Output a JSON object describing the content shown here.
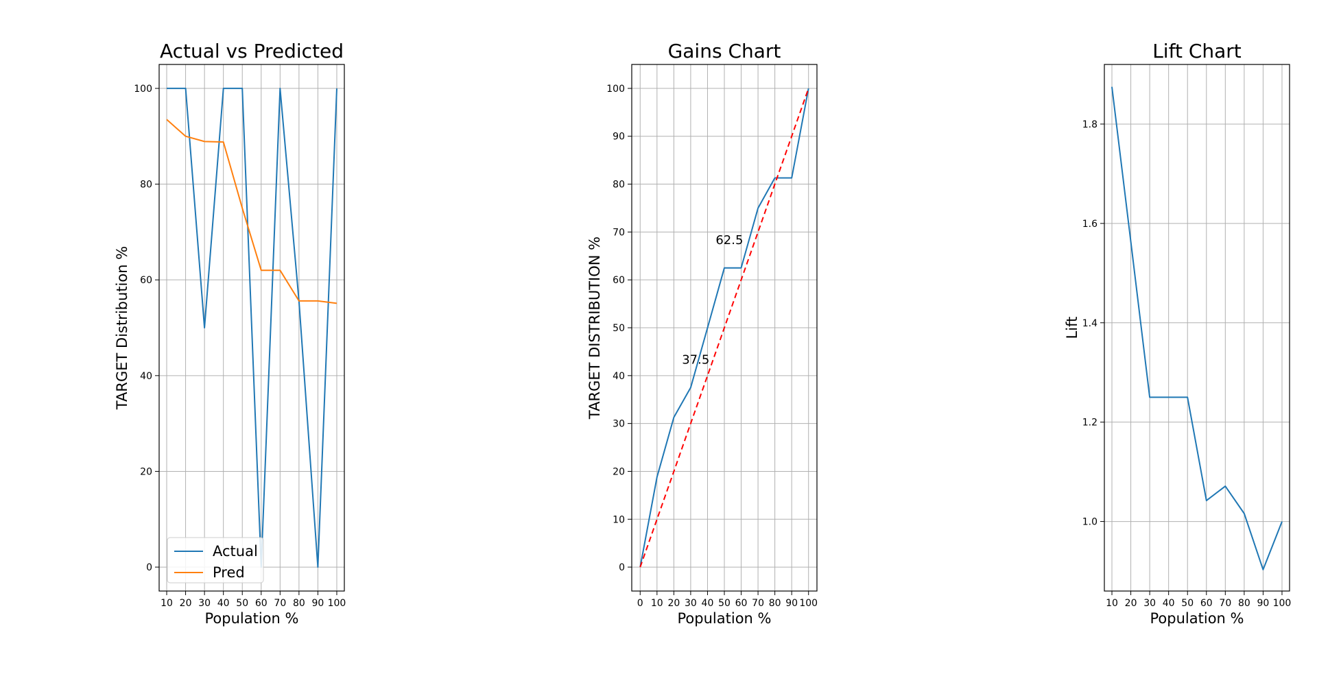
{
  "chart_data": [
    {
      "type": "line",
      "title": "Actual vs Predicted",
      "xlabel": "Population %",
      "ylabel": "TARGET Distribution %",
      "x": [
        10,
        20,
        30,
        40,
        50,
        60,
        70,
        80,
        90,
        100
      ],
      "xticks": [
        "10",
        "20",
        "30",
        "40",
        "50",
        "60",
        "70",
        "80",
        "90",
        "100"
      ],
      "yticks": [
        "0",
        "20",
        "40",
        "60",
        "80",
        "100"
      ],
      "xlim": [
        6,
        104
      ],
      "ylim": [
        -5,
        105
      ],
      "grid": true,
      "legend": "lower-left",
      "series": [
        {
          "name": "Actual",
          "color": "#1f77b4",
          "values": [
            100,
            100,
            50,
            100,
            100,
            0,
            100,
            55.5,
            0,
            100
          ]
        },
        {
          "name": "Pred",
          "color": "#ff7f0e",
          "values": [
            93.5,
            90,
            88.9,
            88.8,
            75,
            62,
            62,
            55.6,
            55.6,
            55.1
          ]
        }
      ]
    },
    {
      "type": "line",
      "title": "Gains Chart",
      "xlabel": "Population %",
      "ylabel": "TARGET DISTRIBUTION %",
      "x": [
        0,
        10,
        20,
        30,
        40,
        50,
        60,
        70,
        80,
        90,
        100
      ],
      "xticks": [
        "0",
        "10",
        "20",
        "30",
        "40",
        "50",
        "60",
        "70",
        "80",
        "90",
        "100"
      ],
      "yticks": [
        "0",
        "10",
        "20",
        "30",
        "40",
        "50",
        "60",
        "70",
        "80",
        "90",
        "100"
      ],
      "xlim": [
        -5,
        105
      ],
      "ylim": [
        -5,
        105
      ],
      "grid": true,
      "series": [
        {
          "color": "#1f77b4",
          "style": "solid",
          "values": [
            0,
            18.8,
            31.3,
            37.5,
            50,
            62.5,
            62.5,
            75,
            81.3,
            81.3,
            100
          ]
        },
        {
          "color": "#ff0000",
          "style": "dashed",
          "values": [
            0,
            10,
            20,
            30,
            40,
            50,
            60,
            70,
            80,
            90,
            100
          ]
        }
      ],
      "annotations": [
        {
          "text": "37.5",
          "x": 33,
          "y": 42.5
        },
        {
          "text": "62.5",
          "x": 53,
          "y": 67.5
        }
      ]
    },
    {
      "type": "line",
      "title": "Lift Chart",
      "xlabel": "Population %",
      "ylabel": "Lift",
      "x": [
        10,
        20,
        30,
        40,
        50,
        60,
        70,
        80,
        90,
        100
      ],
      "xticks": [
        "10",
        "20",
        "30",
        "40",
        "50",
        "60",
        "70",
        "80",
        "90",
        "100"
      ],
      "yticks": [
        "1.0",
        "1.2",
        "1.4",
        "1.6",
        "1.8"
      ],
      "xlim": [
        6,
        104
      ],
      "ylim": [
        0.86,
        1.92
      ],
      "grid": true,
      "series": [
        {
          "color": "#1f77b4",
          "values": [
            1.875,
            1.563,
            1.25,
            1.25,
            1.25,
            1.042,
            1.071,
            1.016,
            0.903,
            1.0
          ]
        }
      ]
    }
  ]
}
